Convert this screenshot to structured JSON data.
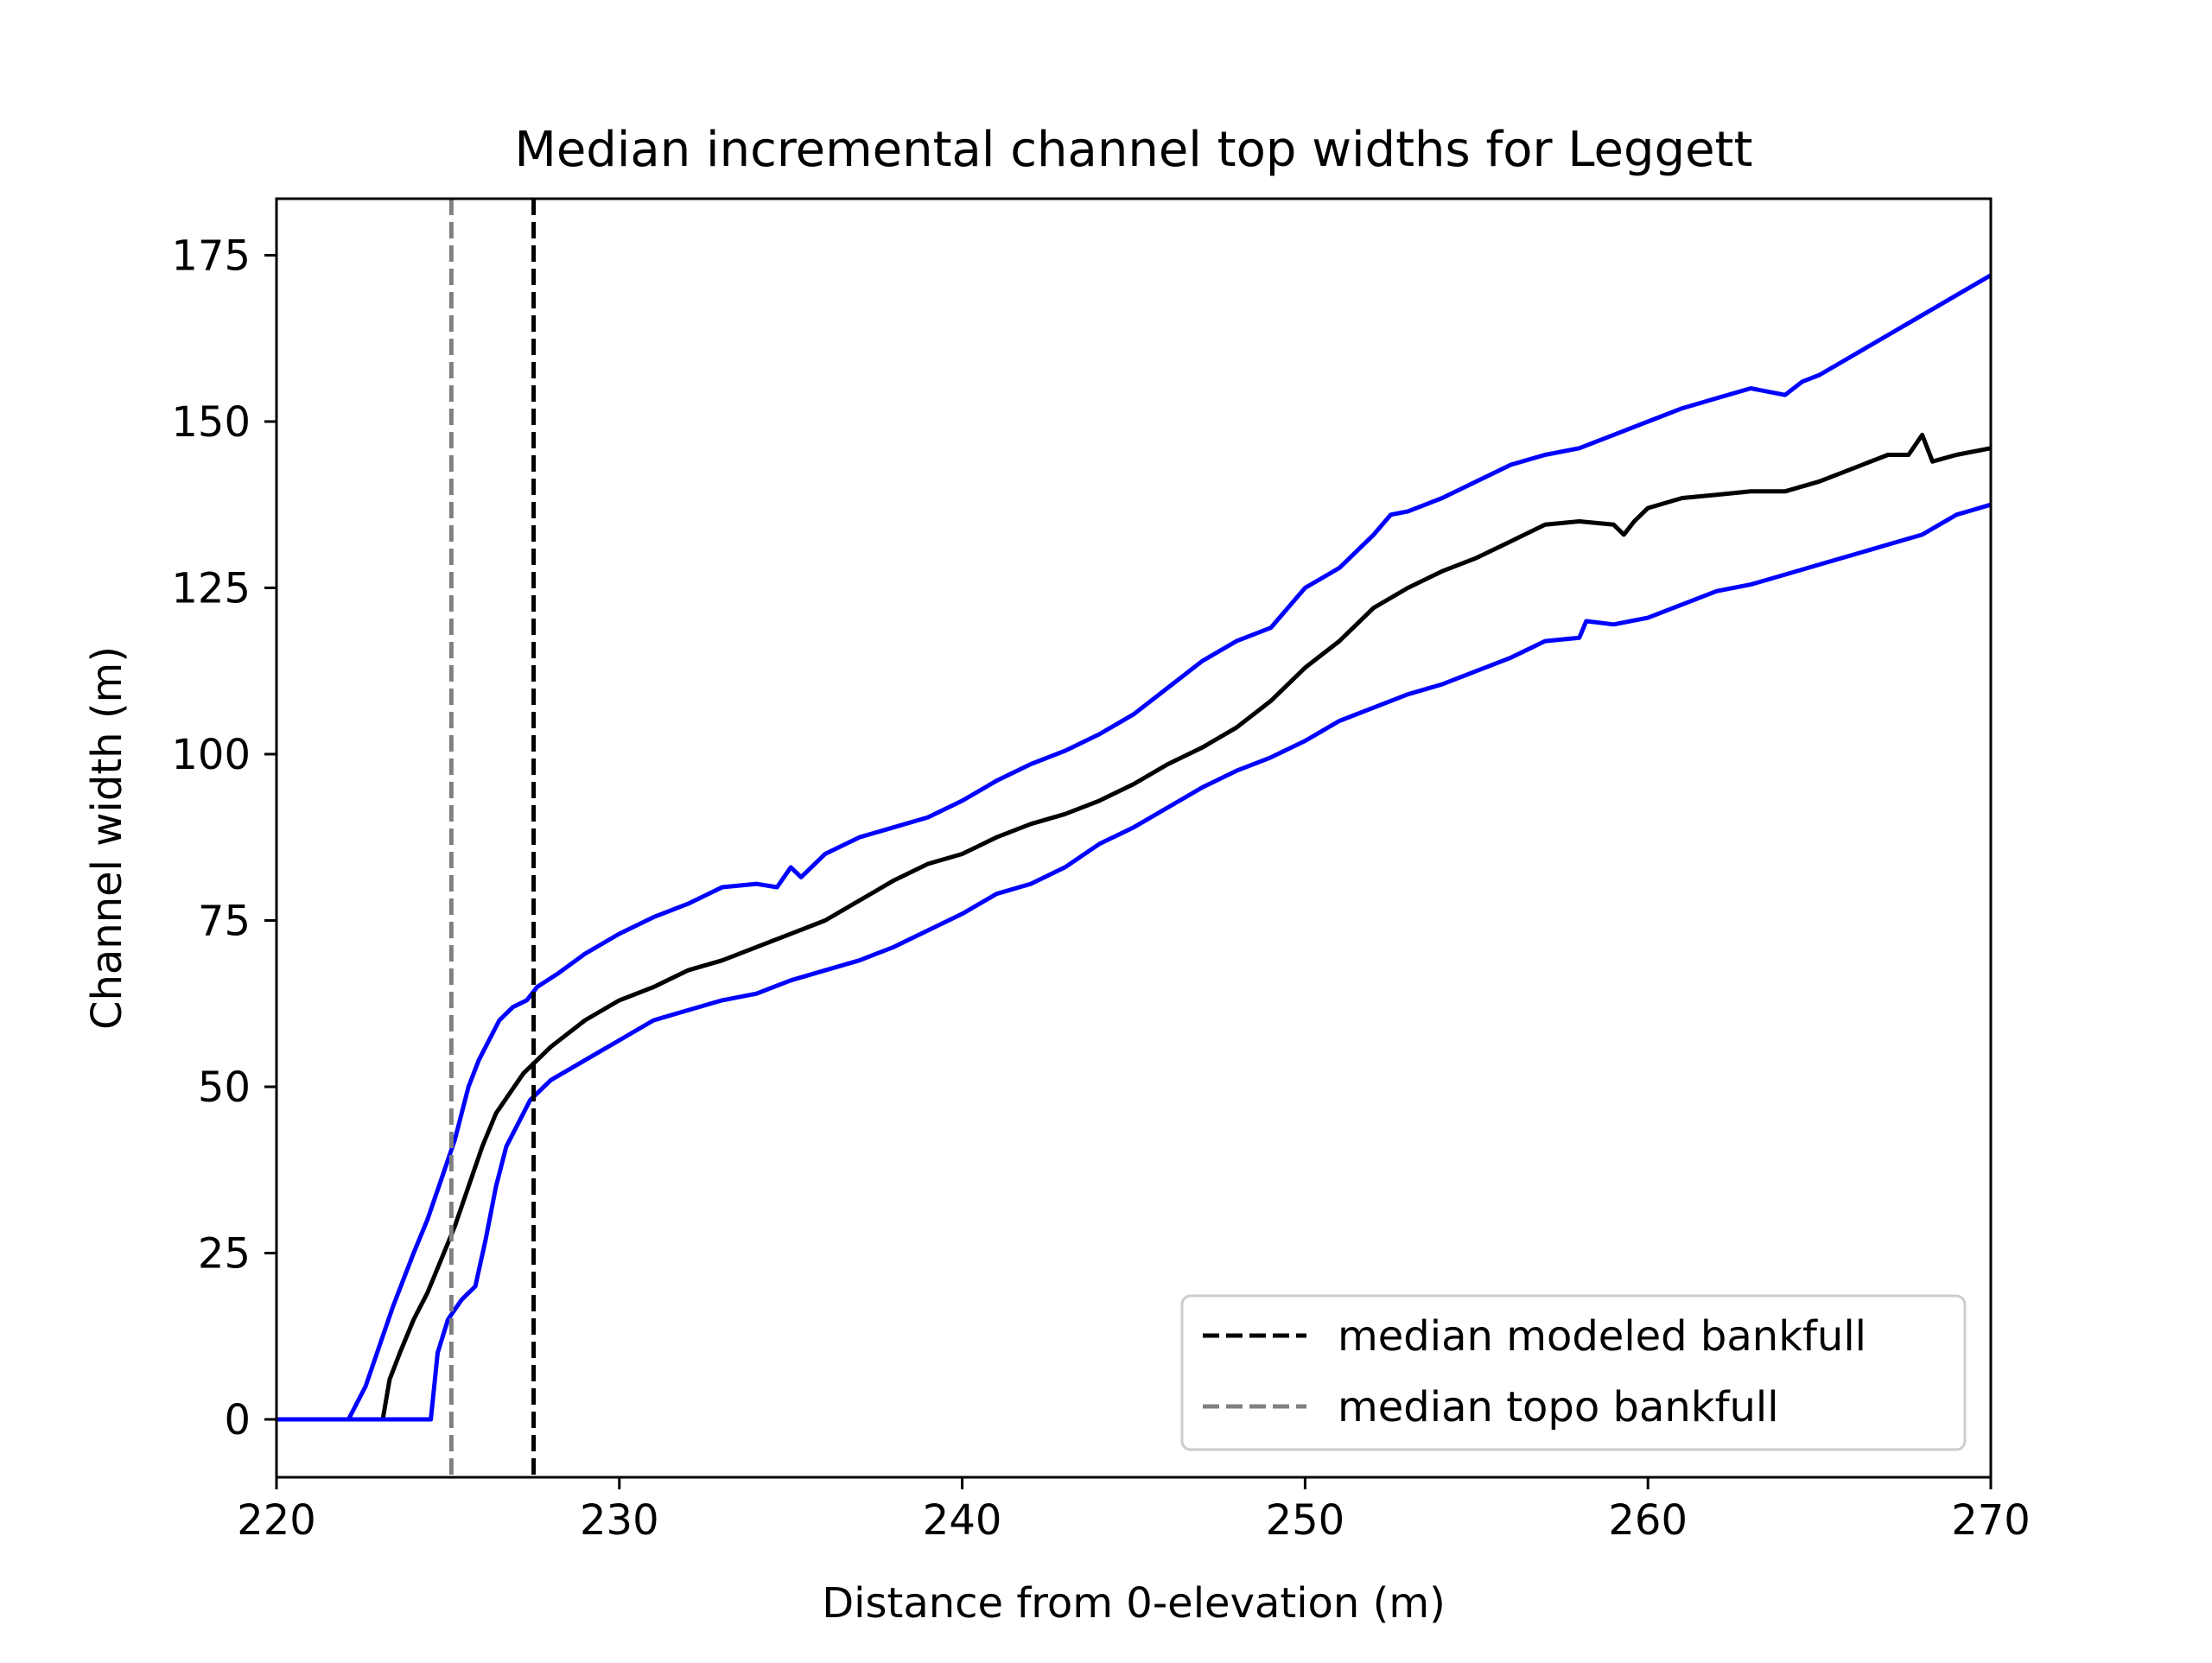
{
  "chart_data": {
    "type": "line",
    "title": "Median incremental channel top widths for Leggett",
    "xlabel": "Distance from 0-elevation (m)",
    "ylabel": "Channel width (m)",
    "xlim": [
      220,
      270
    ],
    "ylim": [
      -8.7,
      183.5
    ],
    "xticks": [
      220,
      230,
      240,
      250,
      260,
      270
    ],
    "yticks": [
      0,
      25,
      50,
      75,
      100,
      125,
      150,
      175
    ],
    "grid": false,
    "legend_position": "lower-right",
    "series": [
      {
        "role": "upper-bound",
        "color": "#0000ff",
        "x": [
          220,
          222.1,
          222.6,
          223.0,
          223.4,
          223.7,
          224.0,
          224.4,
          224.8,
          225.2,
          225.6,
          225.9,
          226.2,
          226.5,
          226.9,
          227.3,
          227.6,
          228.2,
          229.0,
          230.0,
          231.0,
          232.0,
          233.0,
          234.0,
          234.6,
          235.0,
          235.3,
          235.4,
          236.0,
          237.0,
          238.0,
          239.0,
          240.0,
          241.0,
          242.0,
          243.0,
          244.0,
          245.0,
          246.0,
          247.0,
          248.0,
          249.0,
          250.0,
          251.0,
          252.0,
          252.5,
          253.0,
          254.0,
          255.0,
          256.0,
          257.0,
          258.0,
          259.0,
          260.0,
          261.0,
          262.0,
          263.0,
          264.0,
          264.5,
          265.0,
          266.0,
          267.0,
          268.0,
          269.0,
          270.0
        ],
        "y": [
          0,
          0,
          5,
          11,
          17,
          21,
          25,
          30,
          36,
          42,
          50,
          54,
          57,
          60,
          62,
          63,
          65,
          67,
          70,
          73,
          75.5,
          77.5,
          80,
          80.5,
          80,
          83,
          81.5,
          82,
          85,
          87.5,
          89,
          90.5,
          93,
          96,
          98.5,
          100.5,
          103,
          106,
          110,
          114,
          117,
          119,
          125,
          128,
          133,
          136,
          136.5,
          138.5,
          141,
          143.5,
          145,
          146,
          148,
          150,
          152,
          153.5,
          155,
          154,
          156,
          157,
          160,
          163,
          166,
          169,
          172
        ]
      },
      {
        "role": "median",
        "color": "#000000",
        "x": [
          223.1,
          223.3,
          223.6,
          224.0,
          224.4,
          224.8,
          225.2,
          225.6,
          226.0,
          226.4,
          226.8,
          227.2,
          227.6,
          228.0,
          229.0,
          230.0,
          231.0,
          232.0,
          233.0,
          234.0,
          235.0,
          236.0,
          237.0,
          238.0,
          239.0,
          240.0,
          241.0,
          242.0,
          243.0,
          244.0,
          245.0,
          246.0,
          247.0,
          248.0,
          249.0,
          250.0,
          251.0,
          252.0,
          253.0,
          254.0,
          255.0,
          256.0,
          257.0,
          258.0,
          259.0,
          259.3,
          259.6,
          260.0,
          261.0,
          262.0,
          263.0,
          264.0,
          265.0,
          266.0,
          267.0,
          267.6,
          268.0,
          268.3,
          269.0,
          270.0
        ],
        "y": [
          0,
          6,
          10,
          15,
          19,
          24,
          29,
          35,
          41,
          46,
          49,
          52,
          54,
          56,
          60,
          63,
          65,
          67.5,
          69,
          71,
          73,
          75,
          78,
          81,
          83.5,
          85,
          87.5,
          89.5,
          91,
          93,
          95.5,
          98.5,
          101,
          104,
          108,
          113,
          117,
          122,
          125,
          127.5,
          129.5,
          132,
          134.5,
          135,
          134.5,
          133,
          135,
          137,
          138.5,
          139,
          139.5,
          139.5,
          141,
          143,
          145,
          145,
          148,
          144,
          145,
          146
        ]
      },
      {
        "role": "lower-bound",
        "color": "#0000ff",
        "x": [
          220,
          224.5,
          224.7,
          225.0,
          225.4,
          225.8,
          226.1,
          226.4,
          226.7,
          227.1,
          227.4,
          228.0,
          229.0,
          230.0,
          231.0,
          232.0,
          233.0,
          234.0,
          235.0,
          236.0,
          237.0,
          238.0,
          239.0,
          240.0,
          241.0,
          242.0,
          243.0,
          244.0,
          245.0,
          246.0,
          247.0,
          248.0,
          249.0,
          250.0,
          251.0,
          252.0,
          253.0,
          254.0,
          255.0,
          256.0,
          257.0,
          258.0,
          258.2,
          259.0,
          260.0,
          261.0,
          262.0,
          263.0,
          264.0,
          265.0,
          266.0,
          267.0,
          268.0,
          269.0,
          270.0
        ],
        "y": [
          0,
          0,
          10,
          15,
          18,
          20,
          27,
          35,
          41,
          45,
          48,
          51,
          54,
          57,
          60,
          61.5,
          63,
          64,
          66,
          67.5,
          69,
          71,
          73.5,
          76,
          79,
          80.5,
          83,
          86.5,
          89,
          92,
          95,
          97.5,
          99.5,
          102,
          105,
          107,
          109,
          110.5,
          112.5,
          114.5,
          117,
          117.5,
          120,
          119.5,
          120.5,
          122.5,
          124.5,
          125.5,
          127,
          128.5,
          130,
          131.5,
          133,
          136,
          137.5
        ]
      }
    ],
    "reference_lines": [
      {
        "label": "median modeled bankfull",
        "x": 227.5,
        "color": "#000000",
        "style": "dashed"
      },
      {
        "label": "median topo bankfull",
        "x": 225.1,
        "color": "#808080",
        "style": "dashed"
      }
    ]
  }
}
